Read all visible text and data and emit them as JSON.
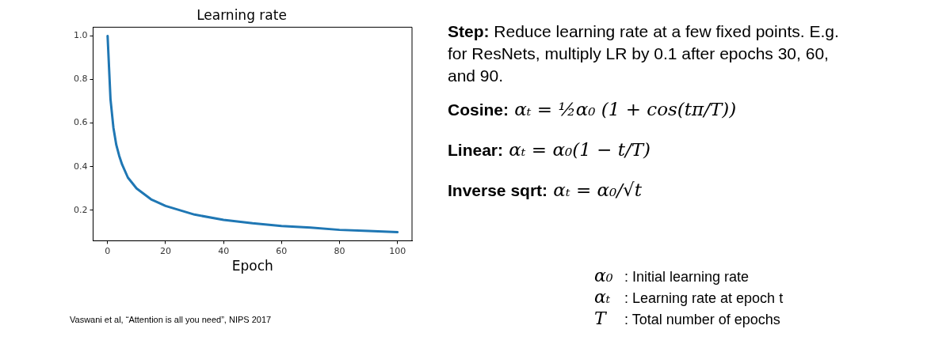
{
  "chart_data": [
    {
      "type": "line",
      "title": "Learning rate",
      "xlabel": "Epoch",
      "series": [
        {
          "color": "#1f77b4",
          "x": [
            0,
            1,
            2,
            3,
            4,
            5,
            7,
            10,
            15,
            20,
            30,
            40,
            50,
            60,
            70,
            80,
            90,
            100
          ],
          "values": [
            1.0,
            0.71,
            0.58,
            0.5,
            0.45,
            0.41,
            0.35,
            0.3,
            0.25,
            0.22,
            0.18,
            0.156,
            0.14,
            0.128,
            0.12,
            0.11,
            0.105,
            0.1
          ]
        }
      ],
      "xlim": [
        -5,
        105
      ],
      "xticks": [
        0,
        20,
        40,
        60,
        80,
        100
      ],
      "ylim": [
        0.06,
        1.04
      ],
      "yticks": [
        0.2,
        0.4,
        0.6,
        0.8,
        {
          "value": 1.0,
          "label": "1.0"
        }
      ],
      "grid": false,
      "legend": false,
      "marker": "none",
      "line_style": "solid",
      "annotations": [
        "Vaswani et al, “Attention is all you need”, NIPS 2017"
      ]
    },
    {
      "type": "other",
      "annotations": [
        "Step: Reduce learning rate at a few fixed points. E.g. for ResNets, multiply LR by 0.1 after epochs 30, 60, and 90.",
        "Cosine: αₜ = ½α₀ (1 + cos(tπ/T))",
        "Linear: αₜ = α₀(1 − t/T)",
        "Inverse sqrt: αₜ = α₀/√t",
        "α₀ : Initial learning rate",
        "αₜ : Learning rate at epoch t",
        "T : Total number of epochs"
      ]
    }
  ]
}
